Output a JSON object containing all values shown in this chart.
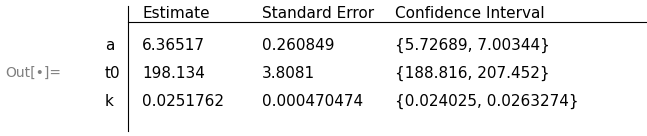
{
  "header": [
    "",
    "Estimate",
    "Standard Error",
    "Confidence Interval"
  ],
  "rows": [
    [
      "a",
      "6.36517",
      "0.260849",
      "{5.72689, 7.00344}"
    ],
    [
      "t0",
      "198.134",
      "3.8081",
      "{188.816, 207.452}"
    ],
    [
      "k",
      "0.0251762",
      "0.000470474",
      "{0.024025, 0.0263274}"
    ]
  ],
  "out_label": "Out[•]=",
  "bg_color": "#ffffff",
  "header_color": "#000000",
  "text_color": "#000000",
  "line_color": "#000000",
  "out_label_color": "#808080",
  "font_size": 11,
  "header_font_size": 11
}
